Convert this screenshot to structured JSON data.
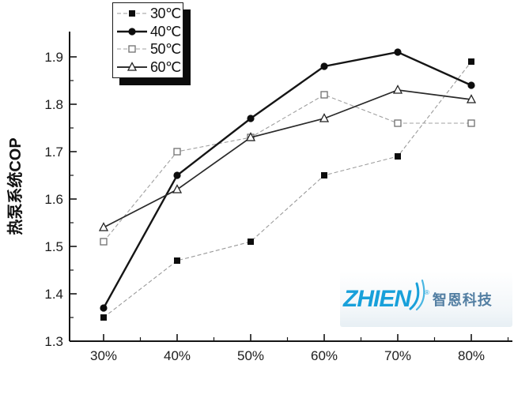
{
  "chart_data": {
    "type": "line",
    "title": "",
    "xlabel": "",
    "ylabel": "热泵系统COP",
    "categories": [
      "30%",
      "40%",
      "50%",
      "60%",
      "70%",
      "80%"
    ],
    "y_ticks": [
      1.3,
      1.4,
      1.5,
      1.6,
      1.7,
      1.8,
      1.9
    ],
    "ylim": [
      1.3,
      1.95
    ],
    "grid": false,
    "legend_position": "top-left",
    "series": [
      {
        "name": "30℃",
        "marker": "filled-square",
        "line_style": "dashed-light",
        "color": "#111111",
        "line_color": "#9b9b9b",
        "values": [
          1.35,
          1.47,
          1.51,
          1.65,
          1.69,
          1.89
        ]
      },
      {
        "name": "40℃",
        "marker": "filled-circle",
        "line_style": "solid-thick",
        "color": "#111111",
        "line_color": "#151515",
        "values": [
          1.37,
          1.65,
          1.77,
          1.88,
          1.91,
          1.84
        ]
      },
      {
        "name": "50℃",
        "marker": "open-square",
        "line_style": "dashed-light",
        "color": "#6f6f6f",
        "line_color": "#a0a0a0",
        "values": [
          1.51,
          1.7,
          1.73,
          1.82,
          1.76,
          1.76
        ]
      },
      {
        "name": "60℃",
        "marker": "open-triangle",
        "line_style": "solid",
        "color": "#1f1f1f",
        "line_color": "#2a2a2a",
        "values": [
          1.54,
          1.62,
          1.73,
          1.77,
          1.83,
          1.81
        ]
      }
    ]
  },
  "watermark": {
    "brand": "ZHIEN",
    "reg_mark": "®",
    "brand_cn": "智恩科技",
    "brand_color": "#18a0da",
    "cn_color": "#527ea2"
  }
}
